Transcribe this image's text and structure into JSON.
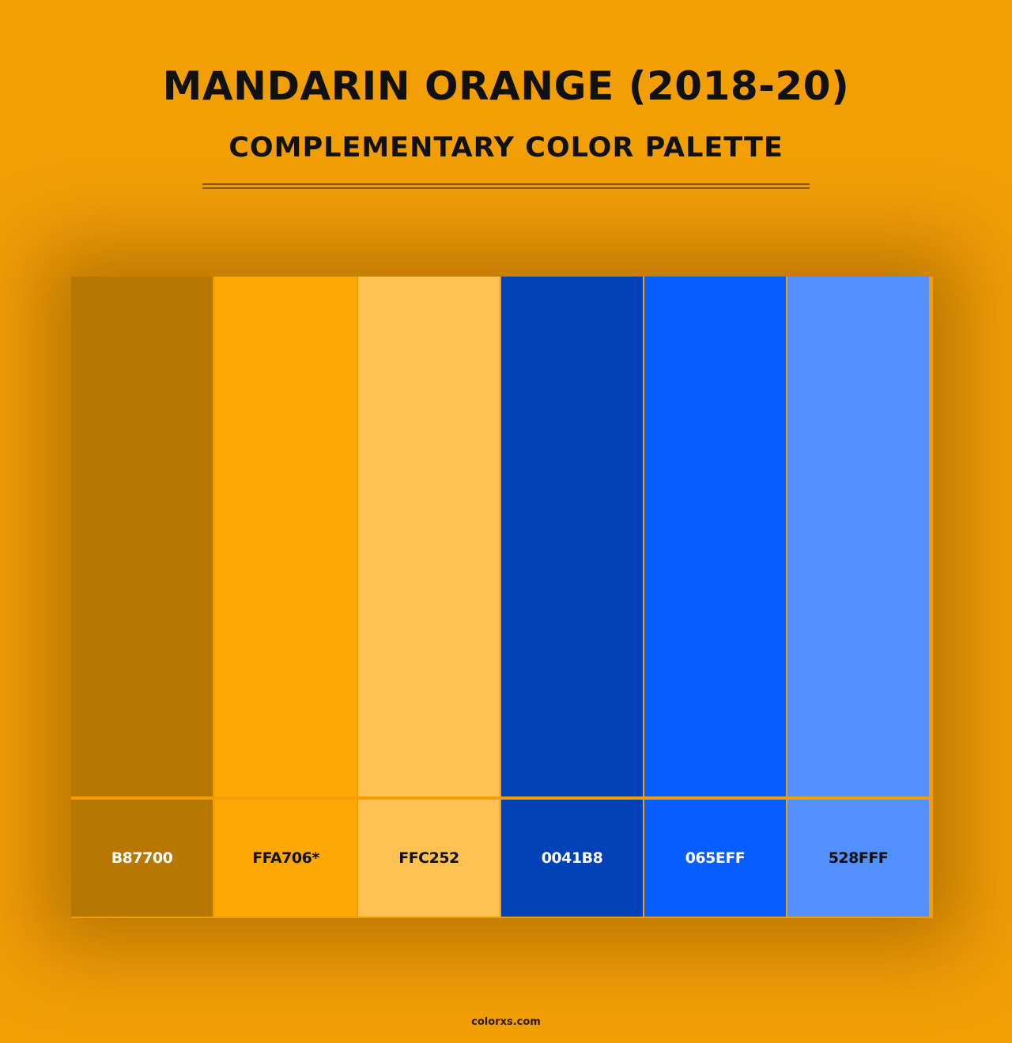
{
  "title": "MANDARIN ORANGE (2018-20)",
  "subtitle": "COMPLEMENTARY COLOR PALETTE",
  "background_color": "#f29f06",
  "swatches": [
    {
      "label": "B87700",
      "color": "#b87700",
      "text_color": "#ffffff"
    },
    {
      "label": "FFA706*",
      "color": "#ffa706",
      "text_color": "#111111"
    },
    {
      "label": "FFC252",
      "color": "#ffc252",
      "text_color": "#111111"
    },
    {
      "label": "0041B8",
      "color": "#0041b8",
      "text_color": "#ffffff"
    },
    {
      "label": "065EFF",
      "color": "#065eff",
      "text_color": "#ffffff"
    },
    {
      "label": "528FFF",
      "color": "#528fff",
      "text_color": "#111111"
    }
  ],
  "footer": "colorxs.com"
}
